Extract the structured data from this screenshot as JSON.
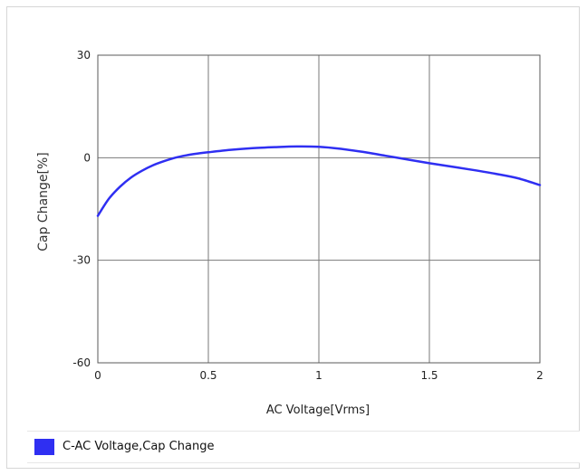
{
  "chart_data": {
    "type": "line",
    "title": "",
    "xlabel": "AC Voltage[Vrms]",
    "ylabel": "Cap Change[%]",
    "xlim": [
      0,
      2
    ],
    "ylim": [
      -60,
      30
    ],
    "x_ticks": [
      0,
      0.5,
      1,
      1.5,
      2
    ],
    "x_tick_labels": [
      "0",
      "0.5",
      "1",
      "1.5",
      "2"
    ],
    "y_ticks": [
      30,
      0,
      -30,
      -60
    ],
    "y_tick_labels": [
      "30",
      "0",
      "-30",
      "-60"
    ],
    "grid": true,
    "legend_position": "bottom",
    "series": [
      {
        "name": "C-AC Voltage,Cap Change",
        "color": "#2f2ff2",
        "x": [
          0,
          0.05,
          0.1,
          0.15,
          0.2,
          0.25,
          0.3,
          0.35,
          0.4,
          0.45,
          0.5,
          0.6,
          0.7,
          0.8,
          0.9,
          1.0,
          1.1,
          1.2,
          1.3,
          1.4,
          1.5,
          1.6,
          1.7,
          1.8,
          1.9,
          2.0
        ],
        "y": [
          -17,
          -12,
          -8.5,
          -5.8,
          -3.8,
          -2.2,
          -1.0,
          0.0,
          0.7,
          1.2,
          1.6,
          2.3,
          2.8,
          3.1,
          3.3,
          3.2,
          2.6,
          1.7,
          0.6,
          -0.5,
          -1.6,
          -2.6,
          -3.6,
          -4.7,
          -6.0,
          -8.0
        ]
      }
    ]
  }
}
